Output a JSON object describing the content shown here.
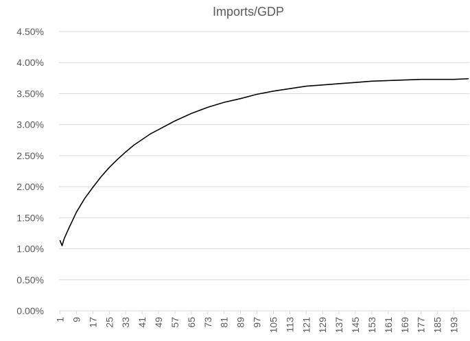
{
  "chart_data": {
    "type": "line",
    "title": "Imports/GDP",
    "xlabel": "",
    "ylabel": "",
    "y_format": "percent_2dp",
    "ylim": [
      0,
      0.045
    ],
    "y_ticks": [
      0,
      0.005,
      0.01,
      0.015,
      0.02,
      0.025,
      0.03,
      0.035,
      0.04,
      0.045
    ],
    "y_tick_labels": [
      "0.00%",
      "0.50%",
      "1.00%",
      "1.50%",
      "2.00%",
      "2.50%",
      "3.00%",
      "3.50%",
      "4.00%",
      "4.50%"
    ],
    "x_range": [
      1,
      200
    ],
    "x_tick_labels": [
      "1",
      "9",
      "17",
      "25",
      "33",
      "41",
      "49",
      "57",
      "65",
      "73",
      "81",
      "89",
      "97",
      "105",
      "113",
      "121",
      "129",
      "137",
      "145",
      "153",
      "161",
      "169",
      "177",
      "185",
      "193"
    ],
    "grid": true,
    "legend": "none",
    "series": [
      {
        "color": "#000000",
        "x": [
          1,
          2,
          3,
          5,
          7,
          9,
          13,
          17,
          21,
          25,
          29,
          33,
          37,
          41,
          45,
          49,
          57,
          65,
          73,
          81,
          89,
          97,
          105,
          113,
          121,
          129,
          137,
          145,
          153,
          161,
          169,
          177,
          185,
          193,
          200
        ],
        "values": [
          0.0113,
          0.0105,
          0.0116,
          0.0131,
          0.0145,
          0.0159,
          0.0181,
          0.0199,
          0.0216,
          0.0231,
          0.0244,
          0.0256,
          0.0267,
          0.0276,
          0.0285,
          0.0292,
          0.0306,
          0.0318,
          0.0328,
          0.0336,
          0.0342,
          0.0349,
          0.0354,
          0.0358,
          0.0362,
          0.0364,
          0.0366,
          0.0368,
          0.037,
          0.0371,
          0.0372,
          0.0373,
          0.0373,
          0.0373,
          0.0374
        ]
      }
    ]
  }
}
